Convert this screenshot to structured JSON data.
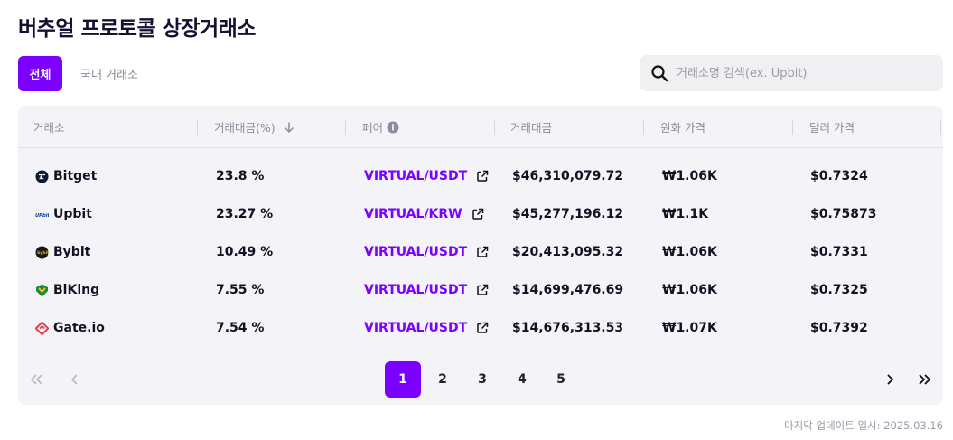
{
  "title": "버추얼 프로토콜 상장거래소",
  "tabs": [
    {
      "label": "전체",
      "active": true
    },
    {
      "label": "국내 거래소",
      "active": false
    }
  ],
  "search": {
    "placeholder": "거래소명 검색(ex. Upbit)",
    "value": ""
  },
  "table": {
    "headers": {
      "exchange": "거래소",
      "volume_pct": "거래대금(%)",
      "pair": "페어",
      "volume": "거래대금",
      "krw_price": "원화 가격",
      "usd_price": "달러 가격"
    },
    "rows": [
      {
        "exchange": "Bitget",
        "logo": "bitget-logo",
        "volume_pct": "23.8 %",
        "pair": "VIRTUAL/USDT",
        "volume": "$46,310,079.72",
        "krw_price": "₩1.06K",
        "usd_price": "$0.7324"
      },
      {
        "exchange": "Upbit",
        "logo": "upbit-logo",
        "volume_pct": "23.27 %",
        "pair": "VIRTUAL/KRW",
        "volume": "$45,277,196.12",
        "krw_price": "₩1.1K",
        "usd_price": "$0.75873"
      },
      {
        "exchange": "Bybit",
        "logo": "bybit-logo",
        "volume_pct": "10.49 %",
        "pair": "VIRTUAL/USDT",
        "volume": "$20,413,095.32",
        "krw_price": "₩1.06K",
        "usd_price": "$0.7331"
      },
      {
        "exchange": "BiKing",
        "logo": "biking-logo",
        "volume_pct": "7.55 %",
        "pair": "VIRTUAL/USDT",
        "volume": "$14,699,476.69",
        "krw_price": "₩1.06K",
        "usd_price": "$0.7325"
      },
      {
        "exchange": "Gate.io",
        "logo": "gateio-logo",
        "volume_pct": "7.54 %",
        "pair": "VIRTUAL/USDT",
        "volume": "$14,676,313.53",
        "krw_price": "₩1.07K",
        "usd_price": "$0.7392"
      }
    ]
  },
  "pagination": {
    "pages": [
      "1",
      "2",
      "3",
      "4",
      "5"
    ],
    "current": "1"
  },
  "updated": "마지막 업데이트 일시: 2025.03.16",
  "colors": {
    "accent": "#7b00ff",
    "title": "#121230",
    "card_bg": "#f4f4f8"
  }
}
